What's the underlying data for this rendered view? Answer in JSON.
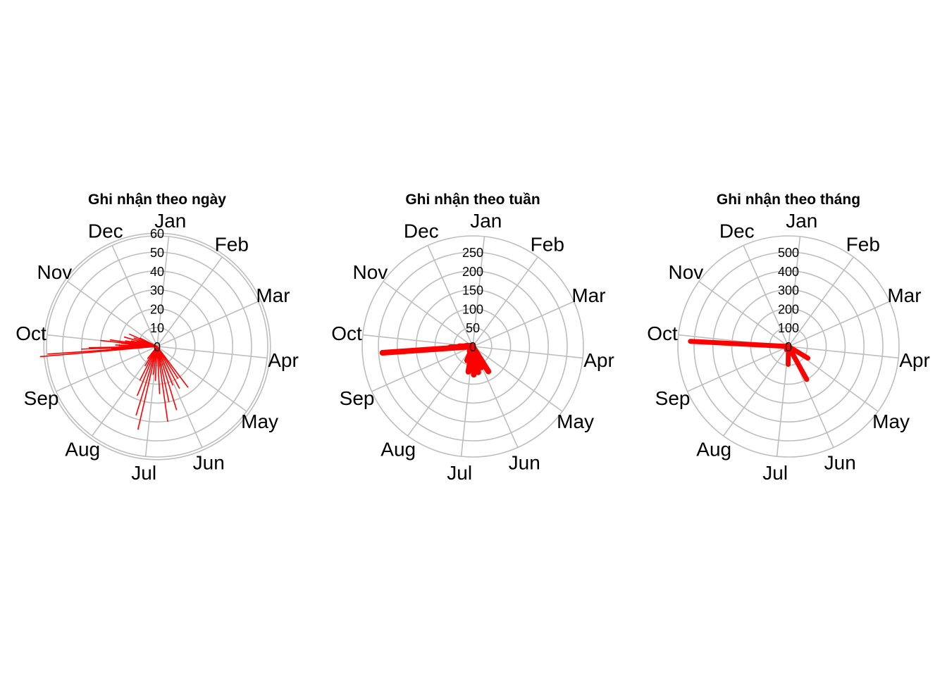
{
  "colors": {
    "data": "#ff0000",
    "grid": "#bebebe",
    "text": "#000000"
  },
  "months": [
    "Jan",
    "Feb",
    "Mar",
    "Apr",
    "May",
    "Jun",
    "Jul",
    "Aug",
    "Sep",
    "Oct",
    "Nov",
    "Dec"
  ],
  "chart_data": [
    {
      "type": "polar-bar",
      "title": "Ghi nhận theo ngày",
      "direction": "clockwise from top",
      "rticks": [
        0,
        10,
        20,
        30,
        40,
        50,
        60
      ],
      "rmax": 60,
      "values": [
        [
          265,
          62
        ],
        [
          266,
          58
        ],
        [
          267,
          24
        ],
        [
          268,
          40
        ],
        [
          269,
          36
        ],
        [
          270,
          12
        ],
        [
          271,
          20
        ],
        [
          272,
          22
        ],
        [
          273,
          8
        ],
        [
          274,
          15
        ],
        [
          275,
          19
        ],
        [
          276,
          30
        ],
        [
          278,
          25
        ],
        [
          280,
          17
        ],
        [
          282,
          14
        ],
        [
          284,
          11
        ],
        [
          286,
          18
        ],
        [
          288,
          9
        ],
        [
          290,
          13
        ],
        [
          292,
          6
        ],
        [
          294,
          16
        ],
        [
          296,
          10
        ],
        [
          143,
          27
        ],
        [
          147,
          20
        ],
        [
          152,
          25
        ],
        [
          158,
          22
        ],
        [
          163,
          35
        ],
        [
          168,
          30
        ],
        [
          172,
          40
        ],
        [
          177,
          25
        ],
        [
          183,
          18
        ],
        [
          188,
          15
        ],
        [
          193,
          45
        ],
        [
          197,
          38
        ],
        [
          202,
          28
        ],
        [
          207,
          20
        ],
        [
          212,
          12
        ],
        [
          218,
          8
        ]
      ]
    },
    {
      "type": "polar-bar",
      "title": "Ghi nhận theo tuần",
      "direction": "clockwise from top",
      "rticks": [
        0,
        50,
        100,
        150,
        200,
        250
      ],
      "rmax": 250,
      "values": [
        [
          266,
          240
        ],
        [
          268,
          60
        ],
        [
          271,
          35
        ],
        [
          274,
          20
        ],
        [
          279,
          15
        ],
        [
          285,
          8
        ],
        [
          148,
          78
        ],
        [
          158,
          60
        ],
        [
          168,
          70
        ],
        [
          178,
          75
        ],
        [
          190,
          68
        ],
        [
          202,
          40
        ],
        [
          214,
          15
        ]
      ]
    },
    {
      "type": "polar-bar",
      "title": "Ghi nhận theo tháng",
      "direction": "clockwise from top",
      "rticks": [
        0,
        100,
        200,
        300,
        400,
        500
      ],
      "rmax": 500,
      "values": [
        [
          273,
          520
        ],
        [
          121,
          120
        ],
        [
          151,
          200
        ],
        [
          181,
          95
        ],
        [
          212,
          20
        ],
        [
          304,
          10
        ]
      ]
    }
  ]
}
